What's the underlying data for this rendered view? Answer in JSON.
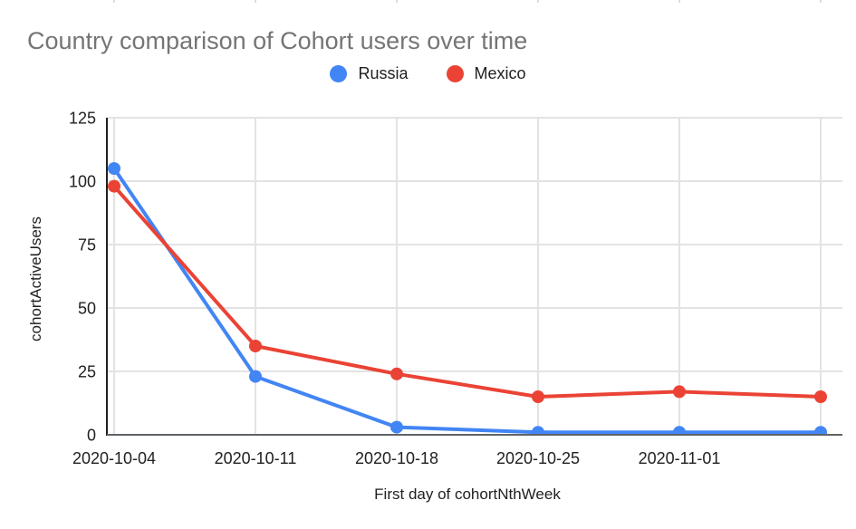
{
  "title": "Country comparison of Cohort users over time",
  "chart_data": {
    "type": "line",
    "title": "Country comparison of Cohort users over time",
    "xlabel": "First day of cohortNthWeek",
    "ylabel": "cohortActiveUsers",
    "categories": [
      "2020-10-04",
      "2020-10-11",
      "2020-10-18",
      "2020-10-25",
      "2020-11-01",
      ""
    ],
    "series": [
      {
        "name": "Russia",
        "color": "#4285F4",
        "values": [
          105,
          23,
          3,
          1,
          1,
          1
        ]
      },
      {
        "name": "Mexico",
        "color": "#EA4335",
        "values": [
          98,
          35,
          24,
          15,
          17,
          15
        ]
      }
    ],
    "y_ticks": [
      0,
      25,
      50,
      75,
      100,
      125
    ],
    "ylim": [
      0,
      125
    ],
    "grid": true,
    "legend_position": "top"
  },
  "colors": {
    "title_text": "#757575",
    "axis_text": "#212121",
    "gridline": "#e3e3e3",
    "y_axis_line": "#212121",
    "x_axis_line": "#5f6368",
    "series_russia": "#4285F4",
    "series_mexico": "#EA4335",
    "background": "#ffffff"
  }
}
